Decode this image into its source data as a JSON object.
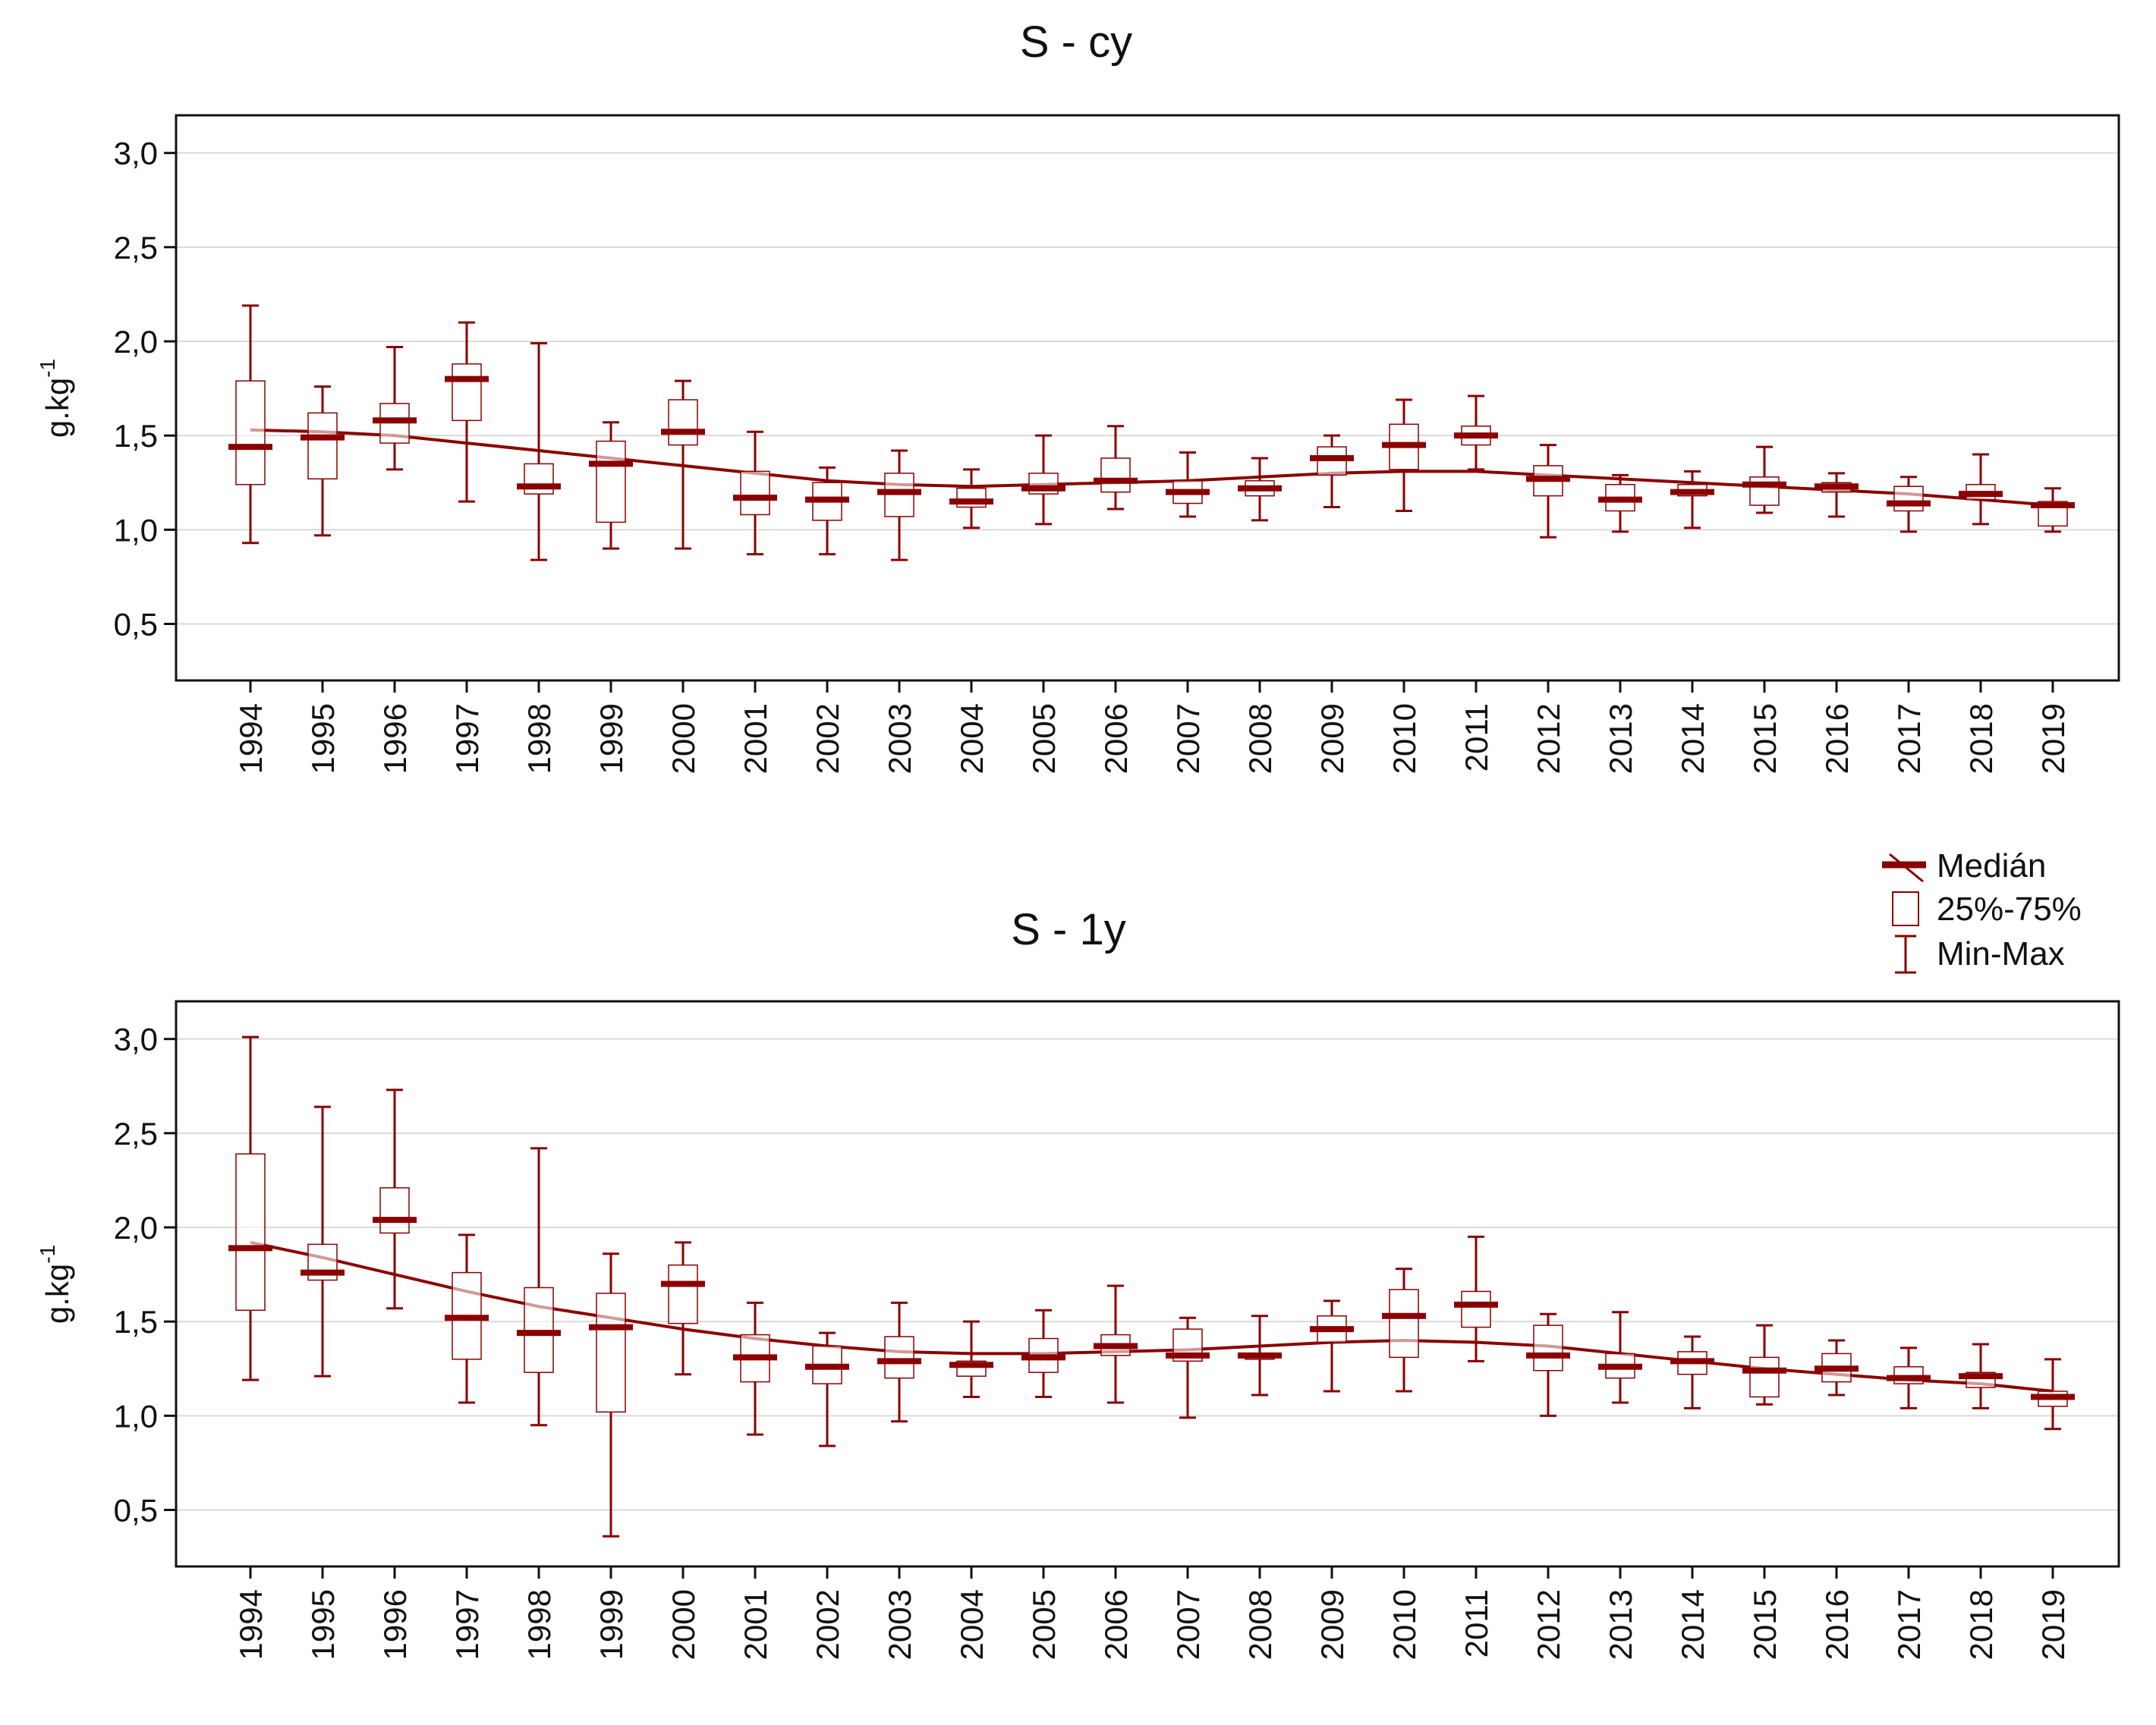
{
  "legend": {
    "items": [
      {
        "label": "Medián",
        "kind": "median"
      },
      {
        "label": "25%-75%",
        "kind": "box"
      },
      {
        "label": "Min-Max",
        "kind": "whisker"
      }
    ]
  },
  "colors": {
    "series": "#8b0000",
    "grid": "#d9d9d9",
    "axis": "#111111"
  },
  "chart_data": [
    {
      "type": "box",
      "title": "S - cy",
      "ylabel": "g.kg",
      "ylabel_sup": "-1",
      "ylim": [
        0.2,
        3.2
      ],
      "yticks": [
        0.5,
        1.0,
        1.5,
        2.0,
        2.5,
        3.0
      ],
      "ytick_labels": [
        "0,5",
        "1,0",
        "1,5",
        "2,0",
        "2,5",
        "3,0"
      ],
      "grid": true,
      "categories": [
        "1994",
        "1995",
        "1996",
        "1997",
        "1998",
        "1999",
        "2000",
        "2001",
        "2002",
        "2003",
        "2004",
        "2005",
        "2006",
        "2007",
        "2008",
        "2009",
        "2010",
        "2011",
        "2012",
        "2013",
        "2014",
        "2015",
        "2016",
        "2017",
        "2018",
        "2019"
      ],
      "min": [
        0.93,
        0.97,
        1.32,
        1.15,
        0.84,
        0.9,
        0.9,
        0.87,
        0.87,
        0.84,
        1.01,
        1.03,
        1.11,
        1.07,
        1.05,
        1.12,
        1.1,
        1.32,
        0.96,
        0.99,
        1.01,
        1.09,
        1.07,
        0.99,
        1.03,
        0.99
      ],
      "q1": [
        1.24,
        1.27,
        1.46,
        1.58,
        1.19,
        1.04,
        1.45,
        1.08,
        1.05,
        1.07,
        1.12,
        1.19,
        1.2,
        1.14,
        1.18,
        1.29,
        1.32,
        1.45,
        1.18,
        1.1,
        1.18,
        1.13,
        1.2,
        1.1,
        1.16,
        1.02
      ],
      "median": [
        1.44,
        1.49,
        1.58,
        1.8,
        1.23,
        1.35,
        1.52,
        1.17,
        1.16,
        1.2,
        1.15,
        1.22,
        1.26,
        1.2,
        1.22,
        1.38,
        1.45,
        1.5,
        1.27,
        1.16,
        1.2,
        1.24,
        1.23,
        1.14,
        1.19,
        1.13
      ],
      "q3": [
        1.79,
        1.62,
        1.67,
        1.88,
        1.35,
        1.47,
        1.69,
        1.31,
        1.25,
        1.3,
        1.22,
        1.3,
        1.38,
        1.26,
        1.26,
        1.44,
        1.56,
        1.55,
        1.34,
        1.24,
        1.24,
        1.28,
        1.25,
        1.23,
        1.24,
        1.15
      ],
      "max": [
        2.19,
        1.76,
        1.97,
        2.1,
        1.99,
        1.57,
        1.79,
        1.52,
        1.33,
        1.42,
        1.32,
        1.5,
        1.55,
        1.41,
        1.38,
        1.5,
        1.69,
        1.71,
        1.45,
        1.29,
        1.31,
        1.44,
        1.3,
        1.28,
        1.4,
        1.22
      ],
      "trend": [
        1.53,
        1.52,
        1.5,
        1.46,
        1.42,
        1.38,
        1.34,
        1.3,
        1.26,
        1.24,
        1.23,
        1.24,
        1.25,
        1.26,
        1.28,
        1.3,
        1.31,
        1.31,
        1.29,
        1.27,
        1.25,
        1.23,
        1.21,
        1.19,
        1.16,
        1.13
      ]
    },
    {
      "type": "box",
      "title": "S - 1y",
      "ylabel": "g.kg",
      "ylabel_sup": "-1",
      "ylim": [
        0.2,
        3.2
      ],
      "yticks": [
        0.5,
        1.0,
        1.5,
        2.0,
        2.5,
        3.0
      ],
      "ytick_labels": [
        "0,5",
        "1,0",
        "1,5",
        "2,0",
        "2,5",
        "3,0"
      ],
      "grid": true,
      "categories": [
        "1994",
        "1995",
        "1996",
        "1997",
        "1998",
        "1999",
        "2000",
        "2001",
        "2002",
        "2003",
        "2004",
        "2005",
        "2006",
        "2007",
        "2008",
        "2009",
        "2010",
        "2011",
        "2012",
        "2013",
        "2014",
        "2015",
        "2016",
        "2017",
        "2018",
        "2019"
      ],
      "min": [
        1.19,
        1.21,
        1.57,
        1.07,
        0.95,
        0.36,
        1.22,
        0.9,
        0.84,
        0.97,
        1.1,
        1.1,
        1.07,
        0.99,
        1.11,
        1.13,
        1.13,
        1.29,
        1.0,
        1.07,
        1.04,
        1.06,
        1.11,
        1.04,
        1.04,
        0.93
      ],
      "q1": [
        1.56,
        1.72,
        1.97,
        1.3,
        1.23,
        1.02,
        1.49,
        1.18,
        1.17,
        1.2,
        1.21,
        1.23,
        1.32,
        1.29,
        1.3,
        1.39,
        1.31,
        1.47,
        1.24,
        1.2,
        1.22,
        1.1,
        1.18,
        1.17,
        1.15,
        1.05
      ],
      "median": [
        1.89,
        1.76,
        2.04,
        1.52,
        1.44,
        1.47,
        1.7,
        1.31,
        1.26,
        1.29,
        1.27,
        1.31,
        1.37,
        1.32,
        1.32,
        1.46,
        1.53,
        1.59,
        1.32,
        1.26,
        1.29,
        1.24,
        1.25,
        1.2,
        1.21,
        1.1
      ],
      "q3": [
        2.39,
        1.91,
        2.21,
        1.76,
        1.68,
        1.65,
        1.8,
        1.43,
        1.37,
        1.42,
        1.29,
        1.41,
        1.43,
        1.46,
        1.33,
        1.53,
        1.67,
        1.66,
        1.48,
        1.33,
        1.34,
        1.31,
        1.33,
        1.26,
        1.23,
        1.13
      ],
      "max": [
        3.01,
        2.64,
        2.73,
        1.96,
        2.42,
        1.86,
        1.92,
        1.6,
        1.44,
        1.6,
        1.5,
        1.56,
        1.69,
        1.52,
        1.53,
        1.61,
        1.78,
        1.95,
        1.54,
        1.55,
        1.42,
        1.48,
        1.4,
        1.36,
        1.38,
        1.3
      ],
      "trend": [
        1.92,
        1.84,
        1.75,
        1.66,
        1.58,
        1.52,
        1.46,
        1.41,
        1.37,
        1.34,
        1.33,
        1.33,
        1.34,
        1.35,
        1.37,
        1.39,
        1.4,
        1.39,
        1.37,
        1.33,
        1.29,
        1.25,
        1.22,
        1.19,
        1.17,
        1.13
      ]
    }
  ]
}
